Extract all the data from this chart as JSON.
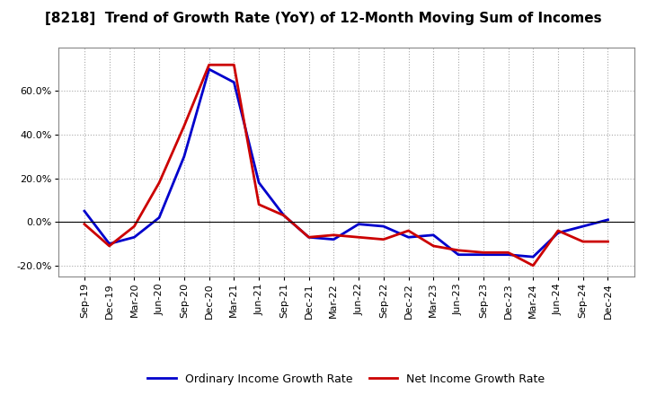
{
  "title": "[8218]  Trend of Growth Rate (YoY) of 12-Month Moving Sum of Incomes",
  "x_labels": [
    "Sep-19",
    "Dec-19",
    "Mar-20",
    "Jun-20",
    "Sep-20",
    "Dec-20",
    "Mar-21",
    "Jun-21",
    "Sep-21",
    "Dec-21",
    "Mar-22",
    "Jun-22",
    "Sep-22",
    "Dec-22",
    "Mar-23",
    "Jun-23",
    "Sep-23",
    "Dec-23",
    "Mar-24",
    "Jun-24",
    "Sep-24",
    "Dec-24"
  ],
  "ordinary_income": [
    0.05,
    -0.1,
    -0.07,
    0.02,
    0.3,
    0.7,
    0.64,
    0.18,
    0.03,
    -0.07,
    -0.08,
    -0.01,
    -0.02,
    -0.07,
    -0.06,
    -0.15,
    -0.15,
    -0.15,
    -0.16,
    -0.05,
    -0.02,
    0.01
  ],
  "net_income": [
    -0.01,
    -0.11,
    -0.02,
    0.18,
    0.44,
    0.72,
    0.72,
    0.08,
    0.03,
    -0.07,
    -0.06,
    -0.07,
    -0.08,
    -0.04,
    -0.11,
    -0.13,
    -0.14,
    -0.14,
    -0.2,
    -0.04,
    -0.09,
    -0.09
  ],
  "ordinary_color": "#0000cc",
  "net_color": "#cc0000",
  "line_width": 2.0,
  "ylim": [
    -0.25,
    0.8
  ],
  "yticks": [
    -0.2,
    0.0,
    0.2,
    0.4,
    0.6
  ],
  "background_color": "#ffffff",
  "plot_bg_color": "#ffffff",
  "grid_color": "#aaaaaa",
  "legend_ordinary": "Ordinary Income Growth Rate",
  "legend_net": "Net Income Growth Rate",
  "title_fontsize": 11,
  "tick_fontsize": 8,
  "legend_fontsize": 9
}
